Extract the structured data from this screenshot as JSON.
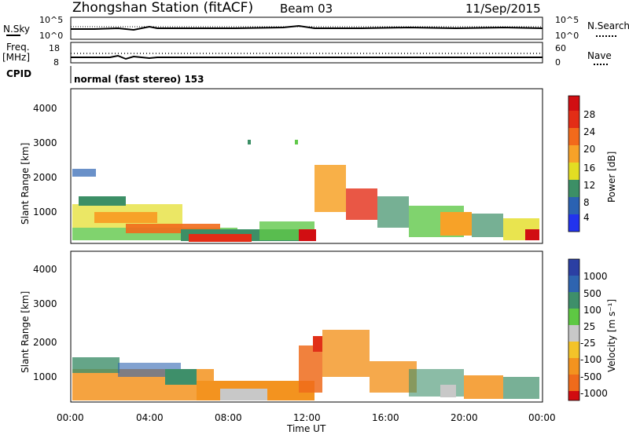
{
  "header": {
    "title": "Zhongshan Station (fitACF)",
    "beam": "Beam 03",
    "date": "11/Sep/2015"
  },
  "panels": {
    "nsky": {
      "label": "N.Sky",
      "ticks": [
        "10^5",
        "10^0"
      ],
      "right_label": "N.Search",
      "right_ticks": [
        "10^5",
        "10^0"
      ]
    },
    "freq": {
      "label_1": "Freq.",
      "label_2": "[MHz]",
      "ticks": [
        "18",
        "8"
      ],
      "right_label": "Nave",
      "right_ticks": [
        "60",
        "0"
      ]
    },
    "cpid": {
      "label": "CPID",
      "mode": "normal (fast stereo) 153"
    }
  },
  "colors": {
    "power_scale": [
      "#2233ee",
      "#2b62b2",
      "#3c8f66",
      "#60c84a",
      "#e3dd23",
      "#f7a228",
      "#f26a1b",
      "#e32d16",
      "#d10e12"
    ],
    "velocity_scale": [
      "#2b3fa3",
      "#2e64b0",
      "#3e8f6a",
      "#5ec843",
      "#c8c8c8",
      "#f3c329",
      "#f3931f",
      "#ef6b1b",
      "#e13018",
      "#d10c10"
    ]
  },
  "chart_data": [
    {
      "type": "heatmap",
      "name": "power",
      "xlabel": "",
      "ylabel": "Slant Range [km]",
      "x_range": [
        "00:00",
        "24:00"
      ],
      "ylim": [
        180,
        4500
      ],
      "yticks": [
        "1000",
        "2000",
        "3000",
        "4000"
      ],
      "colorbar": {
        "label": "Power [dB]",
        "ticks": [
          "4",
          "8",
          "12",
          "16",
          "20",
          "24",
          "28"
        ],
        "range": [
          0,
          30
        ]
      }
    },
    {
      "type": "heatmap",
      "name": "velocity",
      "xlabel": "Time UT",
      "ylabel": "Slant Range [km]",
      "x_range": [
        "00:00",
        "24:00"
      ],
      "xticks": [
        "00:00",
        "04:00",
        "08:00",
        "12:00",
        "16:00",
        "20:00",
        "00:00"
      ],
      "ylim": [
        180,
        4500
      ],
      "yticks": [
        "1000",
        "2000",
        "3000",
        "4000"
      ],
      "colorbar": {
        "label": "Velocity [m s⁻¹]",
        "ticks": [
          "1000",
          "500",
          "100",
          "25",
          "-25",
          "-100",
          "-500",
          "-1000"
        ]
      }
    }
  ]
}
